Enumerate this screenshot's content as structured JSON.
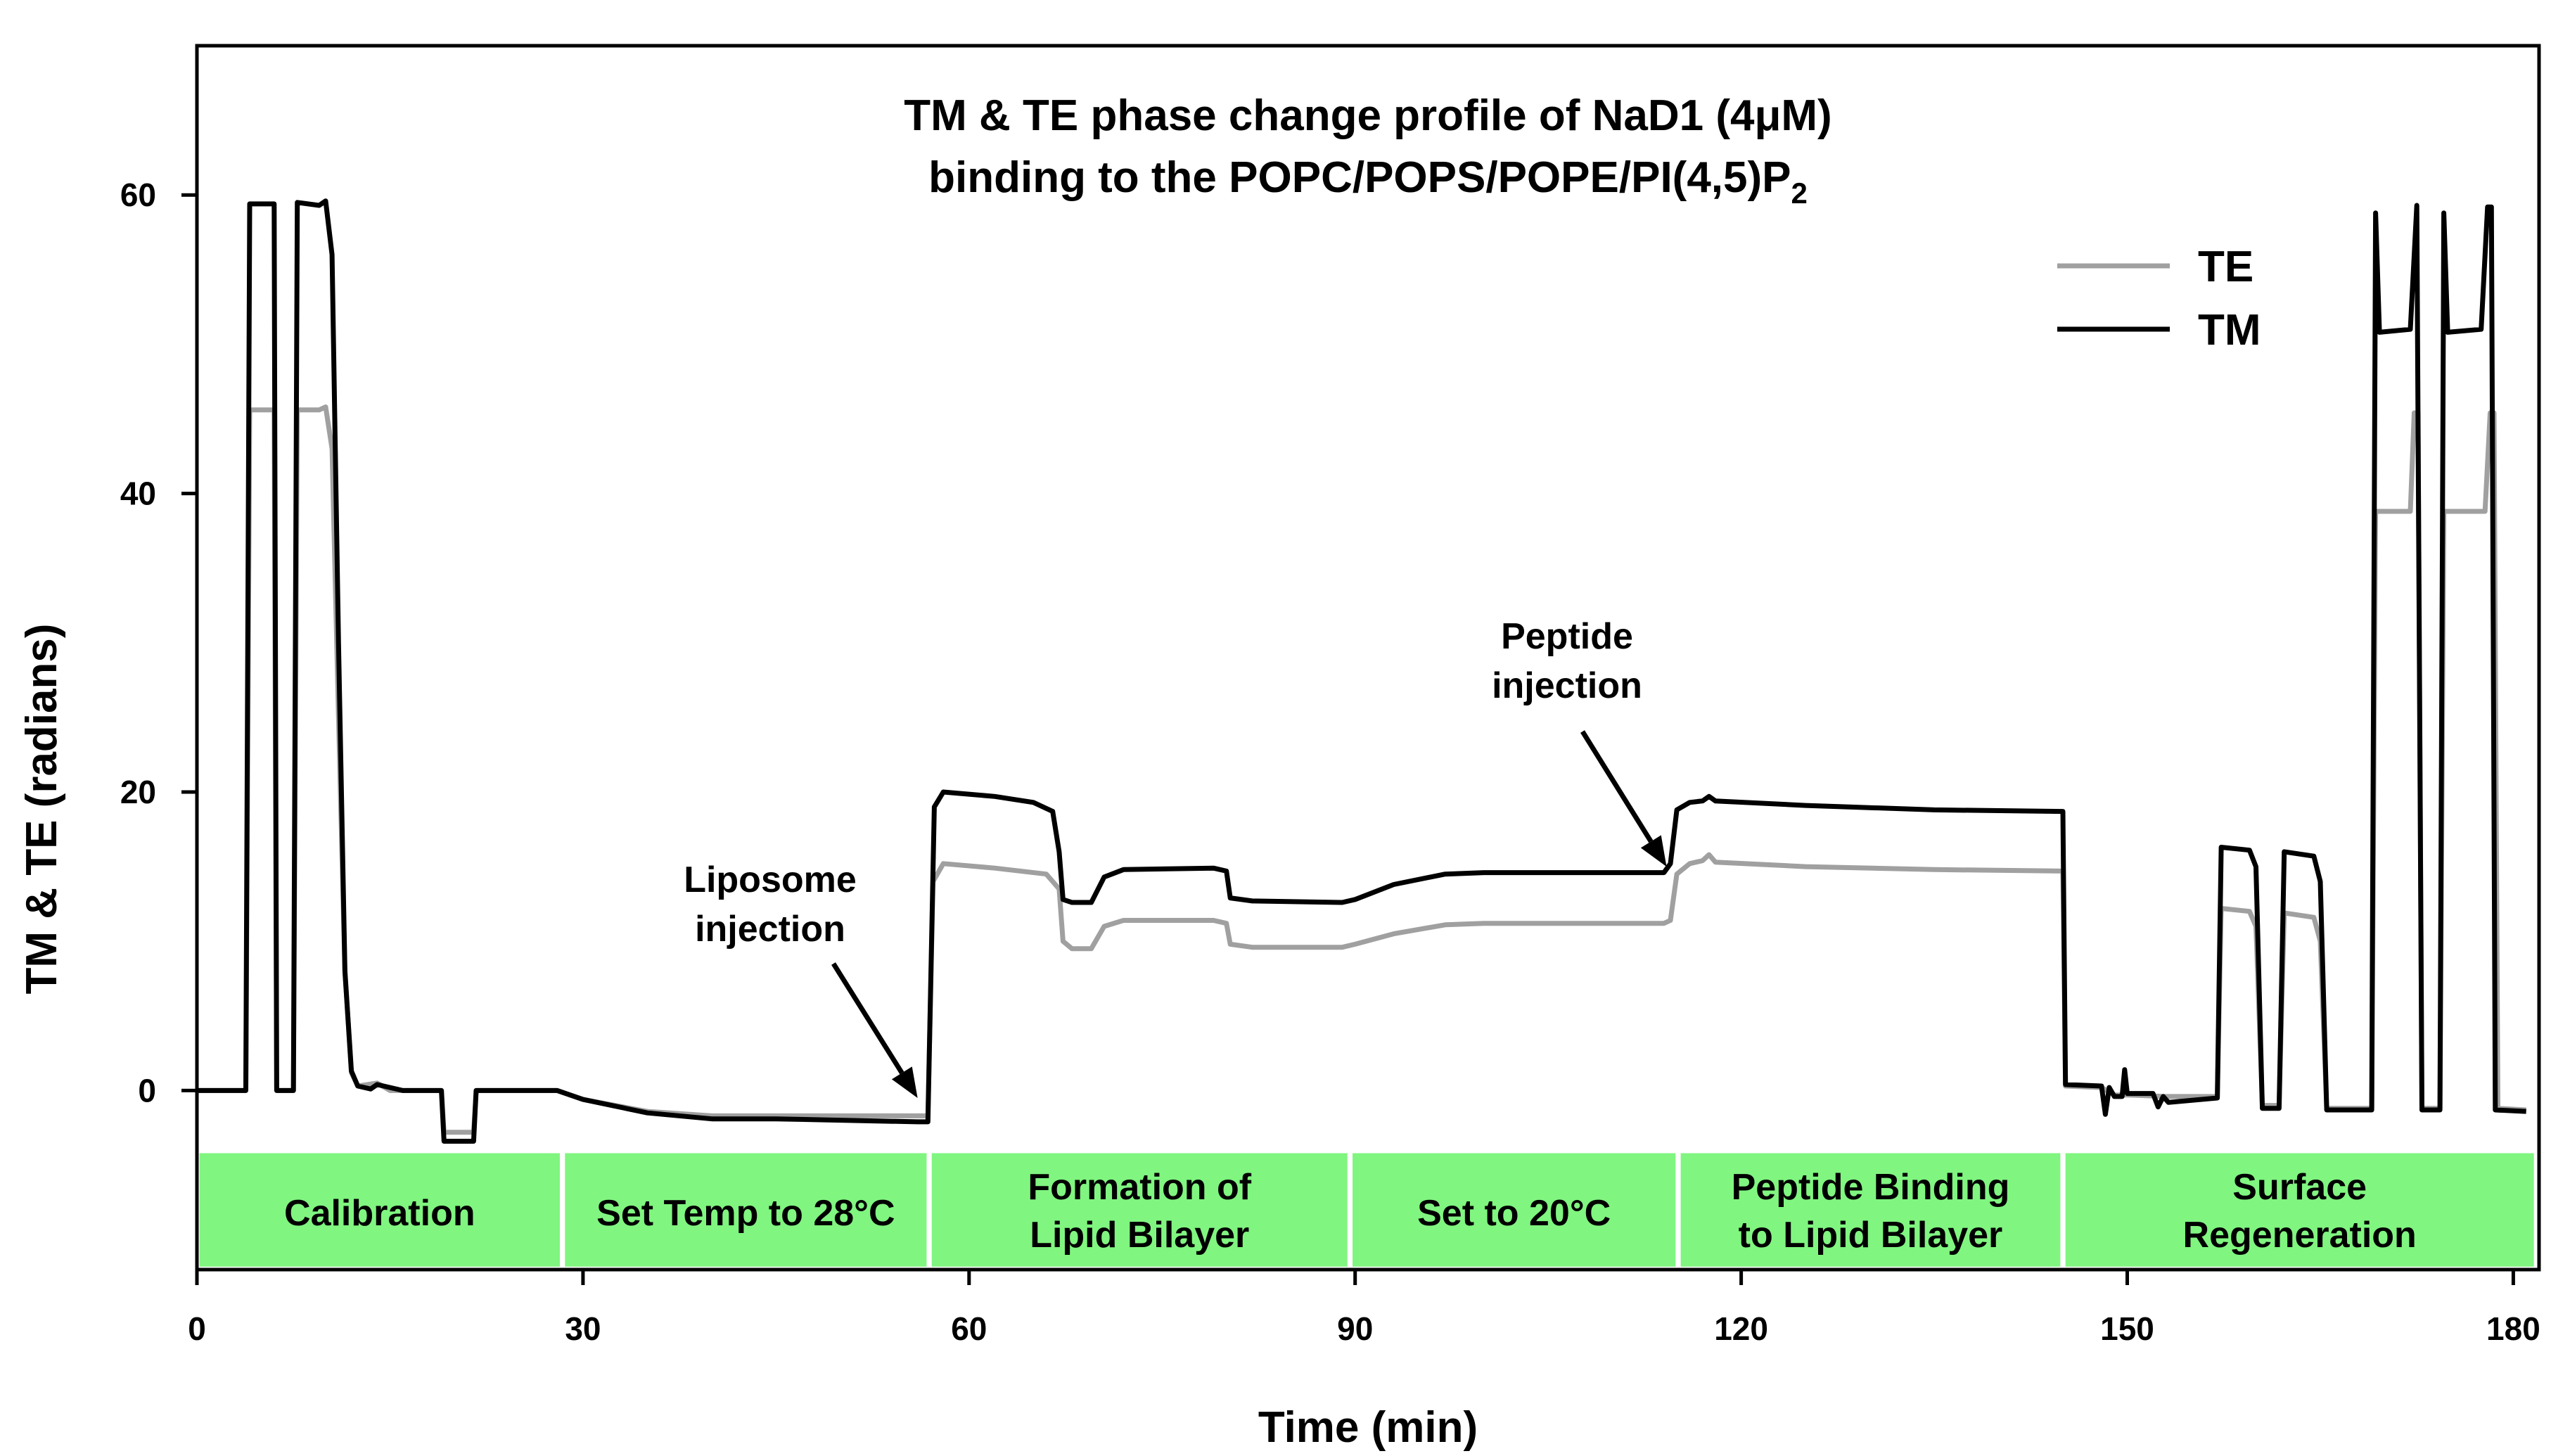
{
  "chart_data": {
    "type": "line",
    "title": "TM & TE phase change profile of NaD1 (4μM)",
    "subtitle_main": "binding to the POPC/POPS/POPE/PI(4,5)P",
    "subtitle_subscript": "2",
    "xlabel": "Time (min)",
    "ylabel": "TM & TE (radians)",
    "xlim": [
      0,
      182
    ],
    "ylim": [
      -12,
      70
    ],
    "x_ticks": [
      0,
      30,
      60,
      90,
      120,
      150,
      180
    ],
    "y_ticks": [
      0,
      20,
      40,
      60
    ],
    "legend_position": "top-right",
    "grid": false,
    "series": [
      {
        "name": "TE",
        "color": "#a0a0a0",
        "points": [
          [
            0,
            0
          ],
          [
            3.8,
            0
          ],
          [
            4.1,
            45.6
          ],
          [
            6,
            45.6
          ],
          [
            6.2,
            0
          ],
          [
            7.5,
            0
          ],
          [
            7.8,
            45.6
          ],
          [
            9.5,
            45.6
          ],
          [
            10,
            45.8
          ],
          [
            10.5,
            43
          ],
          [
            11,
            25
          ],
          [
            11.5,
            8
          ],
          [
            12,
            1.2
          ],
          [
            12.5,
            0.3
          ],
          [
            14,
            0.5
          ],
          [
            15,
            0
          ],
          [
            19,
            0
          ],
          [
            19.2,
            -2.8
          ],
          [
            21.5,
            -2.8
          ],
          [
            21.7,
            0
          ],
          [
            28,
            0
          ],
          [
            30,
            -0.6
          ],
          [
            35,
            -1.4
          ],
          [
            40,
            -1.7
          ],
          [
            45,
            -1.7
          ],
          [
            56,
            -1.7
          ],
          [
            56.8,
            -1.7
          ],
          [
            57.2,
            14
          ],
          [
            58,
            15.2
          ],
          [
            62,
            14.9
          ],
          [
            66,
            14.5
          ],
          [
            67,
            13.5
          ],
          [
            67.3,
            10
          ],
          [
            68,
            9.5
          ],
          [
            69.5,
            9.5
          ],
          [
            70.5,
            11
          ],
          [
            72,
            11.4
          ],
          [
            79,
            11.4
          ],
          [
            80,
            11.2
          ],
          [
            80.3,
            9.8
          ],
          [
            82,
            9.6
          ],
          [
            89,
            9.6
          ],
          [
            90,
            9.8
          ],
          [
            93,
            10.5
          ],
          [
            97,
            11.1
          ],
          [
            100,
            11.2
          ],
          [
            114,
            11.2
          ],
          [
            114.5,
            11.4
          ],
          [
            115,
            14.5
          ],
          [
            116,
            15.2
          ],
          [
            117,
            15.4
          ],
          [
            117.5,
            15.8
          ],
          [
            118,
            15.3
          ],
          [
            125,
            15
          ],
          [
            135,
            14.8
          ],
          [
            145,
            14.7
          ],
          [
            145.2,
            0.3
          ],
          [
            148,
            0.2
          ],
          [
            149,
            -0.3
          ],
          [
            150,
            -0.3
          ],
          [
            153,
            -0.4
          ],
          [
            157,
            -0.4
          ],
          [
            157.3,
            12.2
          ],
          [
            159.5,
            12
          ],
          [
            160,
            11
          ],
          [
            160.5,
            -1
          ],
          [
            161.8,
            -1
          ],
          [
            162.2,
            11.9
          ],
          [
            164.5,
            11.6
          ],
          [
            165,
            10
          ],
          [
            165.5,
            -1.2
          ],
          [
            169,
            -1.2
          ],
          [
            169.3,
            38.8
          ],
          [
            172,
            38.8
          ],
          [
            172.3,
            45.4
          ],
          [
            172.6,
            45.4
          ],
          [
            172.9,
            -1.2
          ],
          [
            174.3,
            -1.2
          ],
          [
            174.6,
            38.8
          ],
          [
            177.8,
            38.8
          ],
          [
            178.2,
            45.4
          ],
          [
            178.5,
            45.4
          ],
          [
            178.8,
            -1.2
          ],
          [
            181,
            -1.3
          ]
        ]
      },
      {
        "name": "TM",
        "color": "#000000",
        "points": [
          [
            0,
            0
          ],
          [
            3.8,
            0
          ],
          [
            4.1,
            59.4
          ],
          [
            6,
            59.4
          ],
          [
            6.2,
            0
          ],
          [
            7.5,
            0
          ],
          [
            7.8,
            59.5
          ],
          [
            9.5,
            59.3
          ],
          [
            10,
            59.6
          ],
          [
            10.5,
            56
          ],
          [
            11,
            30
          ],
          [
            11.5,
            8
          ],
          [
            12,
            1.3
          ],
          [
            12.5,
            0.3
          ],
          [
            13.5,
            0.1
          ],
          [
            14,
            0.4
          ],
          [
            15,
            0.2
          ],
          [
            16,
            0
          ],
          [
            19,
            0
          ],
          [
            19.2,
            -3.4
          ],
          [
            21.5,
            -3.4
          ],
          [
            21.7,
            0
          ],
          [
            28,
            0
          ],
          [
            30,
            -0.6
          ],
          [
            35,
            -1.5
          ],
          [
            40,
            -1.9
          ],
          [
            45,
            -1.9
          ],
          [
            56,
            -2.1
          ],
          [
            56.8,
            -2.1
          ],
          [
            57.3,
            19
          ],
          [
            58,
            20
          ],
          [
            62,
            19.7
          ],
          [
            65,
            19.3
          ],
          [
            66.5,
            18.7
          ],
          [
            67,
            16
          ],
          [
            67.3,
            12.8
          ],
          [
            68,
            12.6
          ],
          [
            69.5,
            12.6
          ],
          [
            70.5,
            14.3
          ],
          [
            72,
            14.8
          ],
          [
            79,
            14.9
          ],
          [
            80,
            14.7
          ],
          [
            80.3,
            12.9
          ],
          [
            82,
            12.7
          ],
          [
            89,
            12.6
          ],
          [
            90,
            12.8
          ],
          [
            93,
            13.8
          ],
          [
            97,
            14.5
          ],
          [
            100,
            14.6
          ],
          [
            114,
            14.6
          ],
          [
            114.5,
            15.2
          ],
          [
            115,
            18.8
          ],
          [
            116,
            19.3
          ],
          [
            117,
            19.4
          ],
          [
            117.5,
            19.7
          ],
          [
            118,
            19.4
          ],
          [
            125,
            19.1
          ],
          [
            135,
            18.8
          ],
          [
            145,
            18.7
          ],
          [
            145.2,
            0.4
          ],
          [
            148,
            0.3
          ],
          [
            148.3,
            -1.6
          ],
          [
            148.6,
            0.2
          ],
          [
            149,
            -0.4
          ],
          [
            149.6,
            -0.4
          ],
          [
            149.8,
            1.4
          ],
          [
            150,
            -0.2
          ],
          [
            152,
            -0.2
          ],
          [
            152.4,
            -1.1
          ],
          [
            152.8,
            -0.4
          ],
          [
            153.2,
            -0.8
          ],
          [
            157,
            -0.5
          ],
          [
            157.3,
            16.3
          ],
          [
            159.5,
            16.1
          ],
          [
            160,
            15
          ],
          [
            160.5,
            -1.2
          ],
          [
            161.8,
            -1.2
          ],
          [
            162.2,
            16
          ],
          [
            164.5,
            15.7
          ],
          [
            165,
            14
          ],
          [
            165.5,
            -1.3
          ],
          [
            169,
            -1.3
          ],
          [
            169.3,
            58.8
          ],
          [
            169.6,
            50.8
          ],
          [
            172,
            51
          ],
          [
            172.5,
            59.3
          ],
          [
            172.9,
            -1.3
          ],
          [
            174.3,
            -1.3
          ],
          [
            174.6,
            58.8
          ],
          [
            174.9,
            50.8
          ],
          [
            177.5,
            51
          ],
          [
            178,
            59.2
          ],
          [
            178.3,
            59.2
          ],
          [
            178.6,
            -1.3
          ],
          [
            181,
            -1.4
          ]
        ]
      }
    ],
    "annotations": [
      {
        "lines": [
          "Liposome",
          "injection"
        ],
        "arrow_to": [
          56,
          -0.5
        ]
      },
      {
        "lines": [
          "Peptide",
          "injection"
        ],
        "arrow_to": [
          114.2,
          15
        ]
      }
    ],
    "phases": [
      {
        "lines": [
          "Calibration"
        ],
        "x_start": 0.2,
        "x_end": 28.2
      },
      {
        "lines": [
          "Set Temp to 28°C"
        ],
        "x_start": 28.6,
        "x_end": 56.7
      },
      {
        "lines": [
          "Formation of",
          "Lipid Bilayer"
        ],
        "x_start": 57.1,
        "x_end": 89.4
      },
      {
        "lines": [
          "Set to 20°C"
        ],
        "x_start": 89.8,
        "x_end": 114.9
      },
      {
        "lines": [
          "Peptide Binding",
          "to Lipid Bilayer"
        ],
        "x_start": 115.3,
        "x_end": 144.8
      },
      {
        "lines": [
          "Surface",
          "Regeneration"
        ],
        "x_start": 145.2,
        "x_end": 181.6
      }
    ],
    "phase_color": "#80f580"
  }
}
